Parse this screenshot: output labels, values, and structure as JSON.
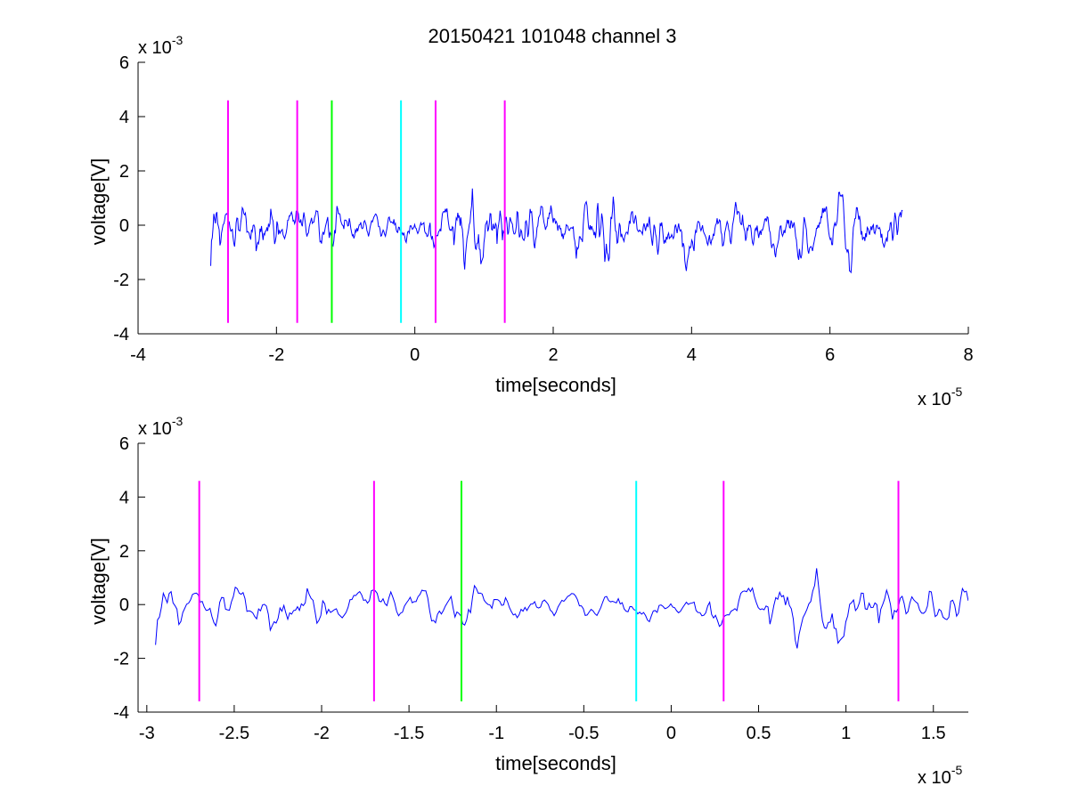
{
  "title": "20150421 101048 channel 3",
  "colors": {
    "signal": "#0000ff",
    "magenta": "#ff00ff",
    "green": "#00ff00",
    "cyan": "#00ffff"
  },
  "chart_data": [
    {
      "type": "line",
      "xlabel": "time[seconds]",
      "ylabel": "voltage[V]",
      "x_multiplier": "x 10",
      "x_exponent": "-5",
      "y_multiplier": "x 10",
      "y_exponent": "-3",
      "xlim": [
        -4,
        8
      ],
      "ylim": [
        -4,
        6
      ],
      "xticks": [
        "-4",
        "-2",
        "0",
        "2",
        "4",
        "6",
        "8"
      ],
      "yticks": [
        "-4",
        "-2",
        "0",
        "2",
        "4",
        "6"
      ],
      "signal_range": [
        -2.95,
        7.05
      ],
      "vertical_markers": [
        {
          "x": -2.7,
          "color": "magenta",
          "ymin": -3.6,
          "ymax": 4.6
        },
        {
          "x": -1.7,
          "color": "magenta",
          "ymin": -3.6,
          "ymax": 4.6
        },
        {
          "x": -1.2,
          "color": "green",
          "ymin": -3.6,
          "ymax": 4.6
        },
        {
          "x": -0.2,
          "color": "cyan",
          "ymin": -3.6,
          "ymax": 4.6
        },
        {
          "x": 0.3,
          "color": "magenta",
          "ymin": -3.6,
          "ymax": 4.6
        },
        {
          "x": 1.3,
          "color": "magenta",
          "ymin": -3.6,
          "ymax": 4.6
        }
      ]
    },
    {
      "type": "line",
      "xlabel": "time[seconds]",
      "ylabel": "voltage[V]",
      "x_multiplier": "x 10",
      "x_exponent": "-5",
      "y_multiplier": "x 10",
      "y_exponent": "-3",
      "xlim": [
        -3.05,
        1.7
      ],
      "ylim": [
        -4,
        6
      ],
      "xticks": [
        "-3",
        "-2.5",
        "-2",
        "-1.5",
        "-1",
        "-0.5",
        "0",
        "0.5",
        "1",
        "1.5"
      ],
      "yticks": [
        "-4",
        "-2",
        "0",
        "2",
        "4",
        "6"
      ],
      "signal_range": [
        -2.95,
        1.7
      ],
      "vertical_markers": [
        {
          "x": -2.7,
          "color": "magenta",
          "ymin": -3.6,
          "ymax": 4.6
        },
        {
          "x": -1.7,
          "color": "magenta",
          "ymin": -3.6,
          "ymax": 4.6
        },
        {
          "x": -1.2,
          "color": "green",
          "ymin": -3.6,
          "ymax": 4.6
        },
        {
          "x": -0.2,
          "color": "cyan",
          "ymin": -3.6,
          "ymax": 4.6
        },
        {
          "x": 0.3,
          "color": "magenta",
          "ymin": -3.6,
          "ymax": 4.6
        },
        {
          "x": 1.3,
          "color": "magenta",
          "ymin": -3.6,
          "ymax": 4.6
        }
      ]
    }
  ]
}
